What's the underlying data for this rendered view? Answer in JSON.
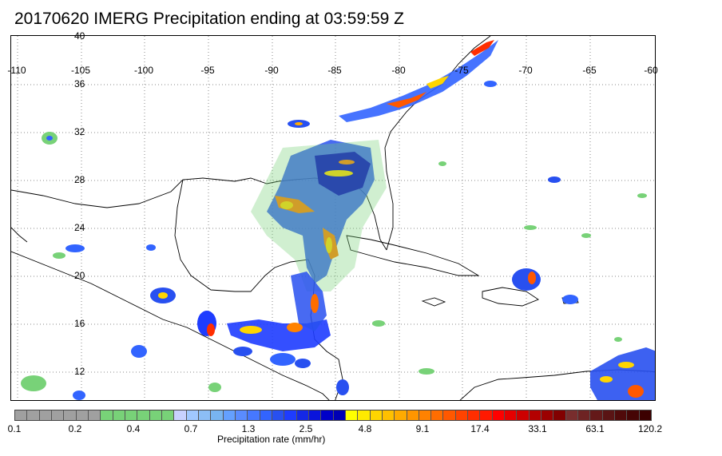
{
  "title": "20170620 IMERG Precipitation ending at 03:59:59 Z",
  "map": {
    "lon_labels": [
      "-110",
      "-105",
      "-100",
      "-95",
      "-90",
      "-85",
      "-80",
      "-75",
      "-70",
      "-65",
      "-60"
    ],
    "lat_labels": [
      "40",
      "36",
      "32",
      "28",
      "24",
      "20",
      "16",
      "12"
    ],
    "grid": "dotted",
    "icons": {
      "coastlines": "black-coastline-outline",
      "precip": "rain-rate-shading"
    }
  },
  "colorbar": {
    "colors": [
      "#a0a0a0",
      "#a0a0a0",
      "#a0a0a0",
      "#a0a0a0",
      "#a0a0a0",
      "#a0a0a0",
      "#a0a0a0",
      "#78d278",
      "#78d278",
      "#78d278",
      "#78d278",
      "#78d278",
      "#78d278",
      "#c8d2ff",
      "#a0c8ff",
      "#8cbef5",
      "#78b4f0",
      "#64a0ff",
      "#5a8cff",
      "#4678ff",
      "#3264ff",
      "#2850f0",
      "#1e3cff",
      "#1428e6",
      "#0a14dc",
      "#0000c8",
      "#0000b4",
      "#ffff00",
      "#ffea00",
      "#ffd500",
      "#ffc000",
      "#ffab00",
      "#ff9600",
      "#ff8200",
      "#ff6d00",
      "#ff5800",
      "#ff4300",
      "#ff2e00",
      "#ff1900",
      "#ff0000",
      "#e60000",
      "#cd0000",
      "#b40000",
      "#9b0000",
      "#820000",
      "#782d2d",
      "#6e2323",
      "#641919",
      "#5a1414",
      "#500a0a",
      "#460505",
      "#3c0000"
    ],
    "ticks": [
      "0.1",
      "0.2",
      "0.4",
      "0.7",
      "1.3",
      "2.5",
      "4.8",
      "9.1",
      "17.4",
      "33.1",
      "63.1",
      "120.2"
    ],
    "label": "Precipitation rate (mm/hr)"
  }
}
